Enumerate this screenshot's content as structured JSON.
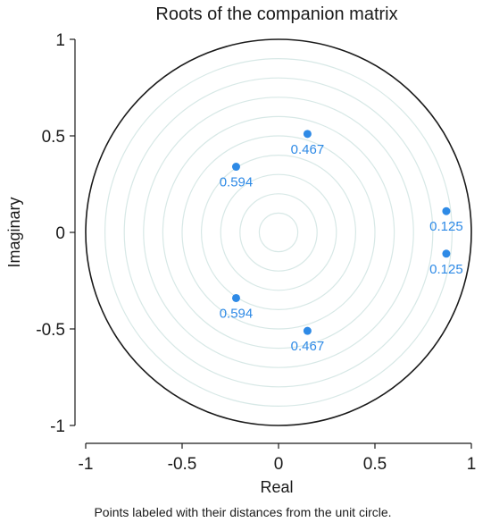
{
  "chart_data": {
    "type": "scatter",
    "title": "Roots of the companion matrix",
    "xlabel": "Real",
    "ylabel": "Imaginary",
    "note": "Points labeled with their distances from the unit circle.",
    "xlim": [
      -1,
      1
    ],
    "ylim": [
      -1,
      1
    ],
    "xticks": [
      {
        "value": -1,
        "label": "-1"
      },
      {
        "value": -0.5,
        "label": "-0.5"
      },
      {
        "value": 0,
        "label": "0"
      },
      {
        "value": 0.5,
        "label": "0.5"
      },
      {
        "value": 1,
        "label": "1"
      }
    ],
    "yticks": [
      {
        "value": 1,
        "label": "1"
      },
      {
        "value": 0.5,
        "label": "0.5"
      },
      {
        "value": 0,
        "label": "0"
      },
      {
        "value": -0.5,
        "label": "-0.5"
      },
      {
        "value": -1,
        "label": "-1"
      }
    ],
    "unit_circle_radius": 1,
    "grid_circle_radii": [
      0.1,
      0.2,
      0.3,
      0.4,
      0.5,
      0.6,
      0.7,
      0.8,
      0.9
    ],
    "points": [
      {
        "x": 0.15,
        "y": 0.51,
        "label": "0.467"
      },
      {
        "x": 0.15,
        "y": -0.51,
        "label": "0.467"
      },
      {
        "x": -0.22,
        "y": 0.34,
        "label": "0.594"
      },
      {
        "x": -0.22,
        "y": -0.34,
        "label": "0.594"
      },
      {
        "x": 0.87,
        "y": 0.11,
        "label": "0.125"
      },
      {
        "x": 0.87,
        "y": -0.11,
        "label": "0.125"
      }
    ],
    "colors": {
      "point": "#2e8ae6",
      "grid": "#d7e8e6",
      "circle": "#1a1a1a",
      "axis": "#1a1a1a"
    }
  }
}
